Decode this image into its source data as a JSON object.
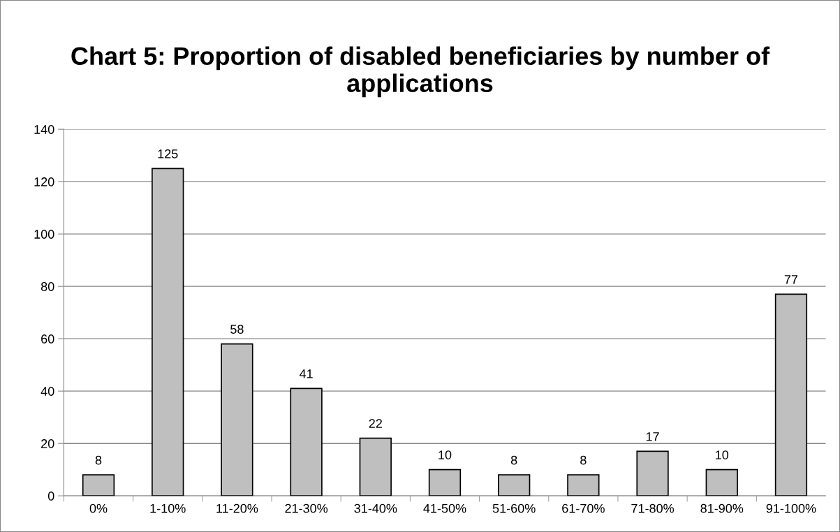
{
  "chart_data": {
    "type": "bar",
    "title": "Chart 5: Proportion of disabled beneficiaries by number of applications",
    "categories": [
      "0%",
      "1-10%",
      "11-20%",
      "21-30%",
      "31-40%",
      "41-50%",
      "51-60%",
      "61-70%",
      "71-80%",
      "81-90%",
      "91-100%"
    ],
    "values": [
      8,
      125,
      58,
      41,
      22,
      10,
      8,
      8,
      17,
      10,
      77
    ],
    "color": "#bfbfbf",
    "ylim": [
      0,
      140
    ],
    "yticks": [
      0,
      20,
      40,
      60,
      80,
      100,
      120,
      140
    ],
    "grid": "y",
    "data_labels": true,
    "legend": false
  }
}
